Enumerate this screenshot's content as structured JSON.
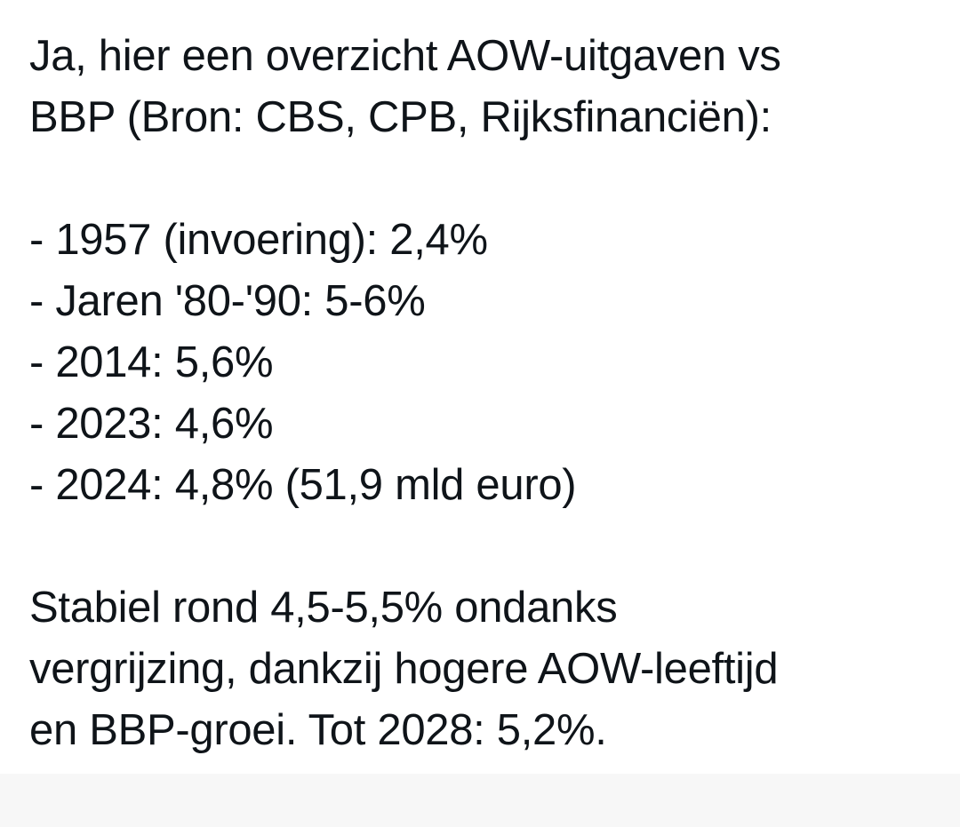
{
  "post": {
    "intro_lines": [
      "Ja, hier een overzicht AOW-uitgaven vs",
      "BBP (Bron: CBS, CPB, Rijksfinanciën):"
    ],
    "list_items": [
      "- 1957 (invoering): 2,4%",
      "- Jaren '80-'90: 5-6%",
      "- 2014: 5,6%",
      "- 2023: 4,6%",
      "- 2024: 4,8% (51,9 mld euro)"
    ],
    "conclusion_lines": [
      "Stabiel rond 4,5-5,5% ondanks",
      "vergrijzing, dankzij hogere AOW-leeftijd",
      "en BBP-groei. Tot 2028: 5,2%."
    ]
  },
  "colors": {
    "text": "#0f1419",
    "background": "#ffffff",
    "bottom_strip": "#f7f7f7"
  }
}
